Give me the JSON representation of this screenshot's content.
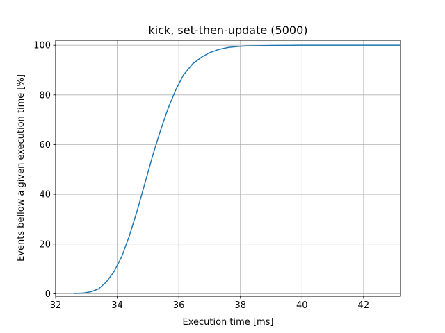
{
  "chart_data": {
    "type": "line",
    "title": "kick, set-then-update (5000)",
    "xlabel": "Execution time [ms]",
    "ylabel": "Events bellow a given execution time [%]",
    "xlim": [
      32,
      43.2
    ],
    "ylim": [
      -1,
      102
    ],
    "xticks": [
      32,
      34,
      36,
      38,
      40,
      42
    ],
    "yticks": [
      0,
      20,
      40,
      60,
      80,
      100
    ],
    "grid": true,
    "line_color": "#1f77b4",
    "series": [
      {
        "x": [
          32.6,
          32.9,
          33.15,
          33.4,
          33.65,
          33.9,
          34.15,
          34.4,
          34.65,
          34.9,
          35.15,
          35.4,
          35.65,
          35.9,
          36.15,
          36.45,
          36.75,
          37.0,
          37.3,
          37.6,
          37.9,
          38.2,
          38.6,
          39.0,
          39.5,
          40.0,
          41.0,
          42.0,
          43.2
        ],
        "y": [
          0.1,
          0.3,
          0.8,
          2.0,
          4.8,
          9.0,
          15.0,
          23.5,
          33.5,
          44.5,
          55.5,
          65.5,
          74.5,
          82.0,
          88.0,
          92.5,
          95.3,
          97.0,
          98.3,
          99.1,
          99.5,
          99.7,
          99.8,
          99.9,
          99.95,
          100,
          100,
          100,
          100
        ]
      }
    ]
  }
}
